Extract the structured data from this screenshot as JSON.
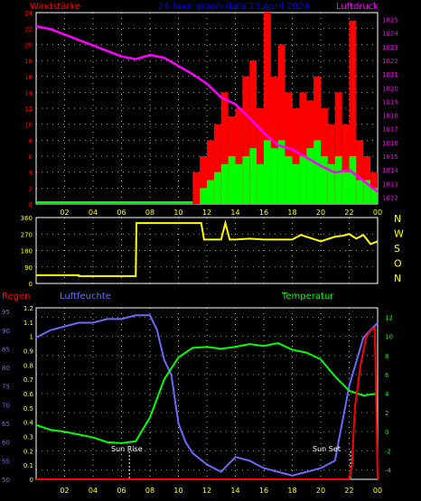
{
  "header": {
    "left_title": "Windstärke",
    "center_title": "24 hour graph data   23 April 2024",
    "right_title": "Luftdruck"
  },
  "colors": {
    "red": "#ff0000",
    "magenta": "#ff00ff",
    "green": "#00ff00",
    "yellow": "#ffff00",
    "blue": "#6a6aff",
    "gridDot": "#ffffff",
    "axisYellow": "#ffff00"
  },
  "x_tick_labels": [
    "02",
    "04",
    "06",
    "08",
    "10",
    "12",
    "14",
    "16",
    "18",
    "20",
    "22",
    "00"
  ],
  "chart_data": [
    {
      "type": "bar",
      "title": "",
      "series": [
        {
          "name": "Windstärke",
          "axis": "left",
          "ylim": [
            0,
            24
          ],
          "yticks": [
            0,
            2,
            4,
            6,
            8,
            10,
            12,
            14,
            16,
            18,
            20,
            22,
            24
          ],
          "note": "gust (red) and mean (green) wind, active from ~11:00",
          "points": [
            [
              11.0,
              4,
              0
            ],
            [
              11.5,
              6,
              2
            ],
            [
              12.0,
              8,
              3
            ],
            [
              12.5,
              10,
              4
            ],
            [
              13.0,
              14,
              5
            ],
            [
              13.5,
              11,
              6
            ],
            [
              14.0,
              12,
              5
            ],
            [
              14.5,
              16,
              6
            ],
            [
              15.0,
              18,
              7
            ],
            [
              15.5,
              12,
              5
            ],
            [
              16.0,
              24,
              8
            ],
            [
              16.5,
              16,
              7
            ],
            [
              17.0,
              20,
              8
            ],
            [
              17.5,
              14,
              6
            ],
            [
              18.0,
              12,
              5
            ],
            [
              18.5,
              14,
              6
            ],
            [
              19.0,
              13,
              7
            ],
            [
              19.5,
              16,
              8
            ],
            [
              20.0,
              12,
              6
            ],
            [
              20.5,
              10,
              5
            ],
            [
              21.0,
              14,
              6
            ],
            [
              21.5,
              10,
              4
            ],
            [
              22.0,
              23,
              6
            ],
            [
              22.5,
              8,
              3
            ],
            [
              23.0,
              6,
              3
            ],
            [
              23.5,
              4,
              2
            ]
          ]
        },
        {
          "name": "Luftdruck",
          "axis": "right",
          "ylim": [
            1011.5,
            1025.5
          ],
          "yticks": [
            1012,
            1013,
            1014,
            1015,
            1016,
            1017,
            1018,
            1019,
            1020,
            1021,
            1022,
            1023,
            1024,
            1025
          ],
          "x": [
            0,
            1,
            2,
            3,
            4,
            5,
            6,
            7,
            8,
            9,
            10,
            11,
            12,
            13,
            14,
            15,
            16,
            17,
            18,
            19,
            20,
            21,
            22,
            23,
            24
          ],
          "values": [
            1024.5,
            1024.3,
            1023.9,
            1023.5,
            1023.1,
            1022.7,
            1022.3,
            1022.1,
            1022.4,
            1022.2,
            1021.6,
            1021.0,
            1020.3,
            1019.3,
            1018.8,
            1017.8,
            1016.7,
            1015.8,
            1015.5,
            1014.9,
            1014.3,
            1013.8,
            1014.0,
            1013.2,
            1012.4
          ]
        }
      ]
    },
    {
      "type": "line",
      "title": "",
      "series": [
        {
          "name": "wind direction",
          "ylim": [
            0,
            360
          ],
          "yticks": [
            0,
            90,
            180,
            270,
            360
          ],
          "ytick_labels": [
            "0",
            "90",
            "180",
            "270",
            "360"
          ],
          "right_labels": [
            "N",
            "W",
            "S",
            "O",
            "N"
          ],
          "x": [
            0,
            3,
            3,
            7,
            7.05,
            11.6,
            11.8,
            13,
            13.3,
            13.6,
            14,
            15,
            16,
            18,
            18.6,
            20,
            21,
            21.5,
            22,
            22.5,
            23,
            23.5,
            24
          ],
          "values": [
            45,
            45,
            40,
            40,
            330,
            330,
            240,
            240,
            330,
            240,
            240,
            245,
            240,
            240,
            265,
            230,
            255,
            260,
            270,
            245,
            265,
            215,
            230
          ]
        }
      ]
    },
    {
      "type": "line",
      "title": "",
      "labels": {
        "left": "Regen",
        "left2": "Luftfeuchte",
        "right": "Temperatur",
        "sunrise": "Sun Rise",
        "sunset": "Sun Set"
      },
      "series": [
        {
          "name": "Regen",
          "axis": "rain",
          "ylim": [
            0,
            1.2
          ],
          "yticks": [
            0,
            0.1,
            0.2,
            0.3,
            0.4,
            0.5,
            0.6,
            0.7,
            0.8,
            0.9,
            1,
            1.1,
            1.2
          ],
          "x": [
            0,
            22.0,
            22.2,
            22.4,
            22.8,
            23.2,
            23.6,
            23.8,
            24
          ],
          "values": [
            0,
            0,
            0.1,
            0.5,
            0.8,
            1.0,
            1.05,
            1.06,
            0
          ]
        },
        {
          "name": "Luftfeuchte",
          "axis": "humidity",
          "ylim": [
            50,
            96
          ],
          "yticks": [
            50,
            55,
            60,
            65,
            70,
            75,
            80,
            85,
            90,
            95
          ],
          "x": [
            0,
            1,
            2,
            3,
            4,
            5,
            6,
            7,
            8,
            8.5,
            9,
            9.5,
            10,
            10.5,
            11,
            12,
            13,
            14,
            15,
            16,
            17,
            18,
            19,
            20,
            21,
            22,
            23,
            24
          ],
          "values": [
            88,
            90,
            91,
            92,
            92,
            93,
            93,
            94,
            94,
            90,
            82,
            78,
            65,
            60,
            57,
            54,
            52,
            56,
            55,
            53,
            52,
            51,
            52,
            53,
            55,
            75,
            88,
            92
          ]
        },
        {
          "name": "Temperatur",
          "axis": "temp",
          "ylim": [
            -5,
            13
          ],
          "yticks": [
            -4,
            -2,
            0,
            2,
            4,
            6,
            8,
            10,
            12
          ],
          "x": [
            0,
            1,
            2,
            3,
            4,
            5,
            6,
            7,
            8,
            9,
            10,
            11,
            12,
            13,
            14,
            15,
            16,
            17,
            18,
            19,
            20,
            21,
            22,
            23,
            24
          ],
          "values": [
            0.7,
            0.2,
            0,
            -0.3,
            -0.6,
            -1.1,
            -1.2,
            -1.0,
            1.5,
            5.5,
            7.8,
            8.8,
            8.9,
            8.7,
            8.9,
            9.2,
            9.0,
            9.3,
            8.6,
            8.3,
            7.6,
            5.8,
            4.3,
            3.8,
            4.0
          ]
        }
      ]
    }
  ]
}
